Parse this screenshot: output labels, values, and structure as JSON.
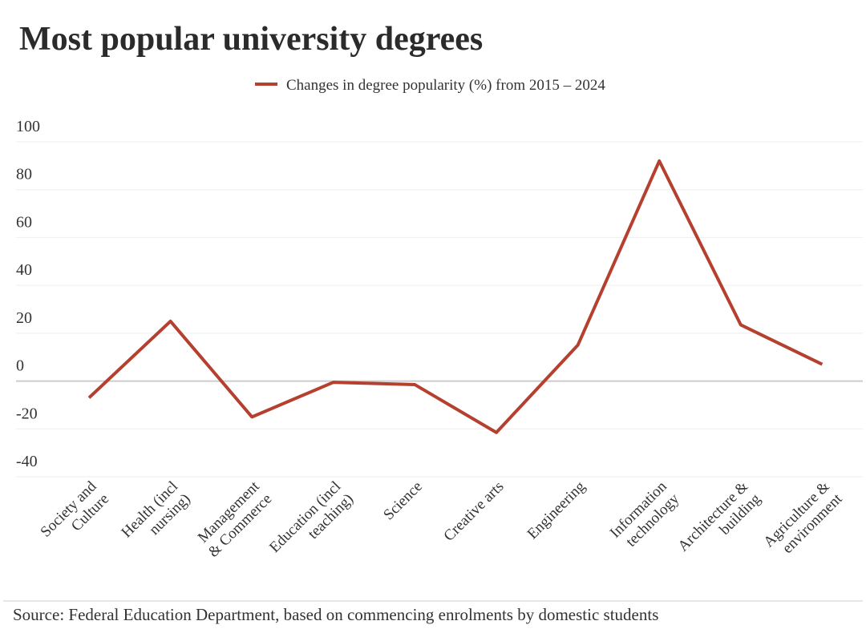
{
  "chart_data": {
    "type": "line",
    "title": "Most popular university degrees",
    "categories": [
      [
        "Society and",
        "Culture"
      ],
      [
        "Health (incl",
        "nursing)"
      ],
      [
        "Management",
        "& Commerce"
      ],
      [
        "Education (incl",
        "teaching)"
      ],
      [
        "Science"
      ],
      [
        "Creative arts"
      ],
      [
        "Engineering"
      ],
      [
        "Information",
        "technology"
      ],
      [
        "Architecture &",
        "building"
      ],
      [
        "Agriculture &",
        "environment"
      ]
    ],
    "series": [
      {
        "name": "Changes in degree popularity (%) from 2015 – 2024",
        "color": "#b5402f",
        "values": [
          -7,
          25,
          -15,
          -0.5,
          -1.5,
          -21.5,
          15,
          92,
          23.5,
          7
        ]
      }
    ],
    "ylim": [
      -40,
      100
    ],
    "yticks": [
      -40,
      -20,
      0,
      20,
      40,
      60,
      80,
      100
    ],
    "grid": true,
    "legend": "top",
    "source": "Source: Federal Education Department, based on commencing enrolments by domestic students"
  }
}
